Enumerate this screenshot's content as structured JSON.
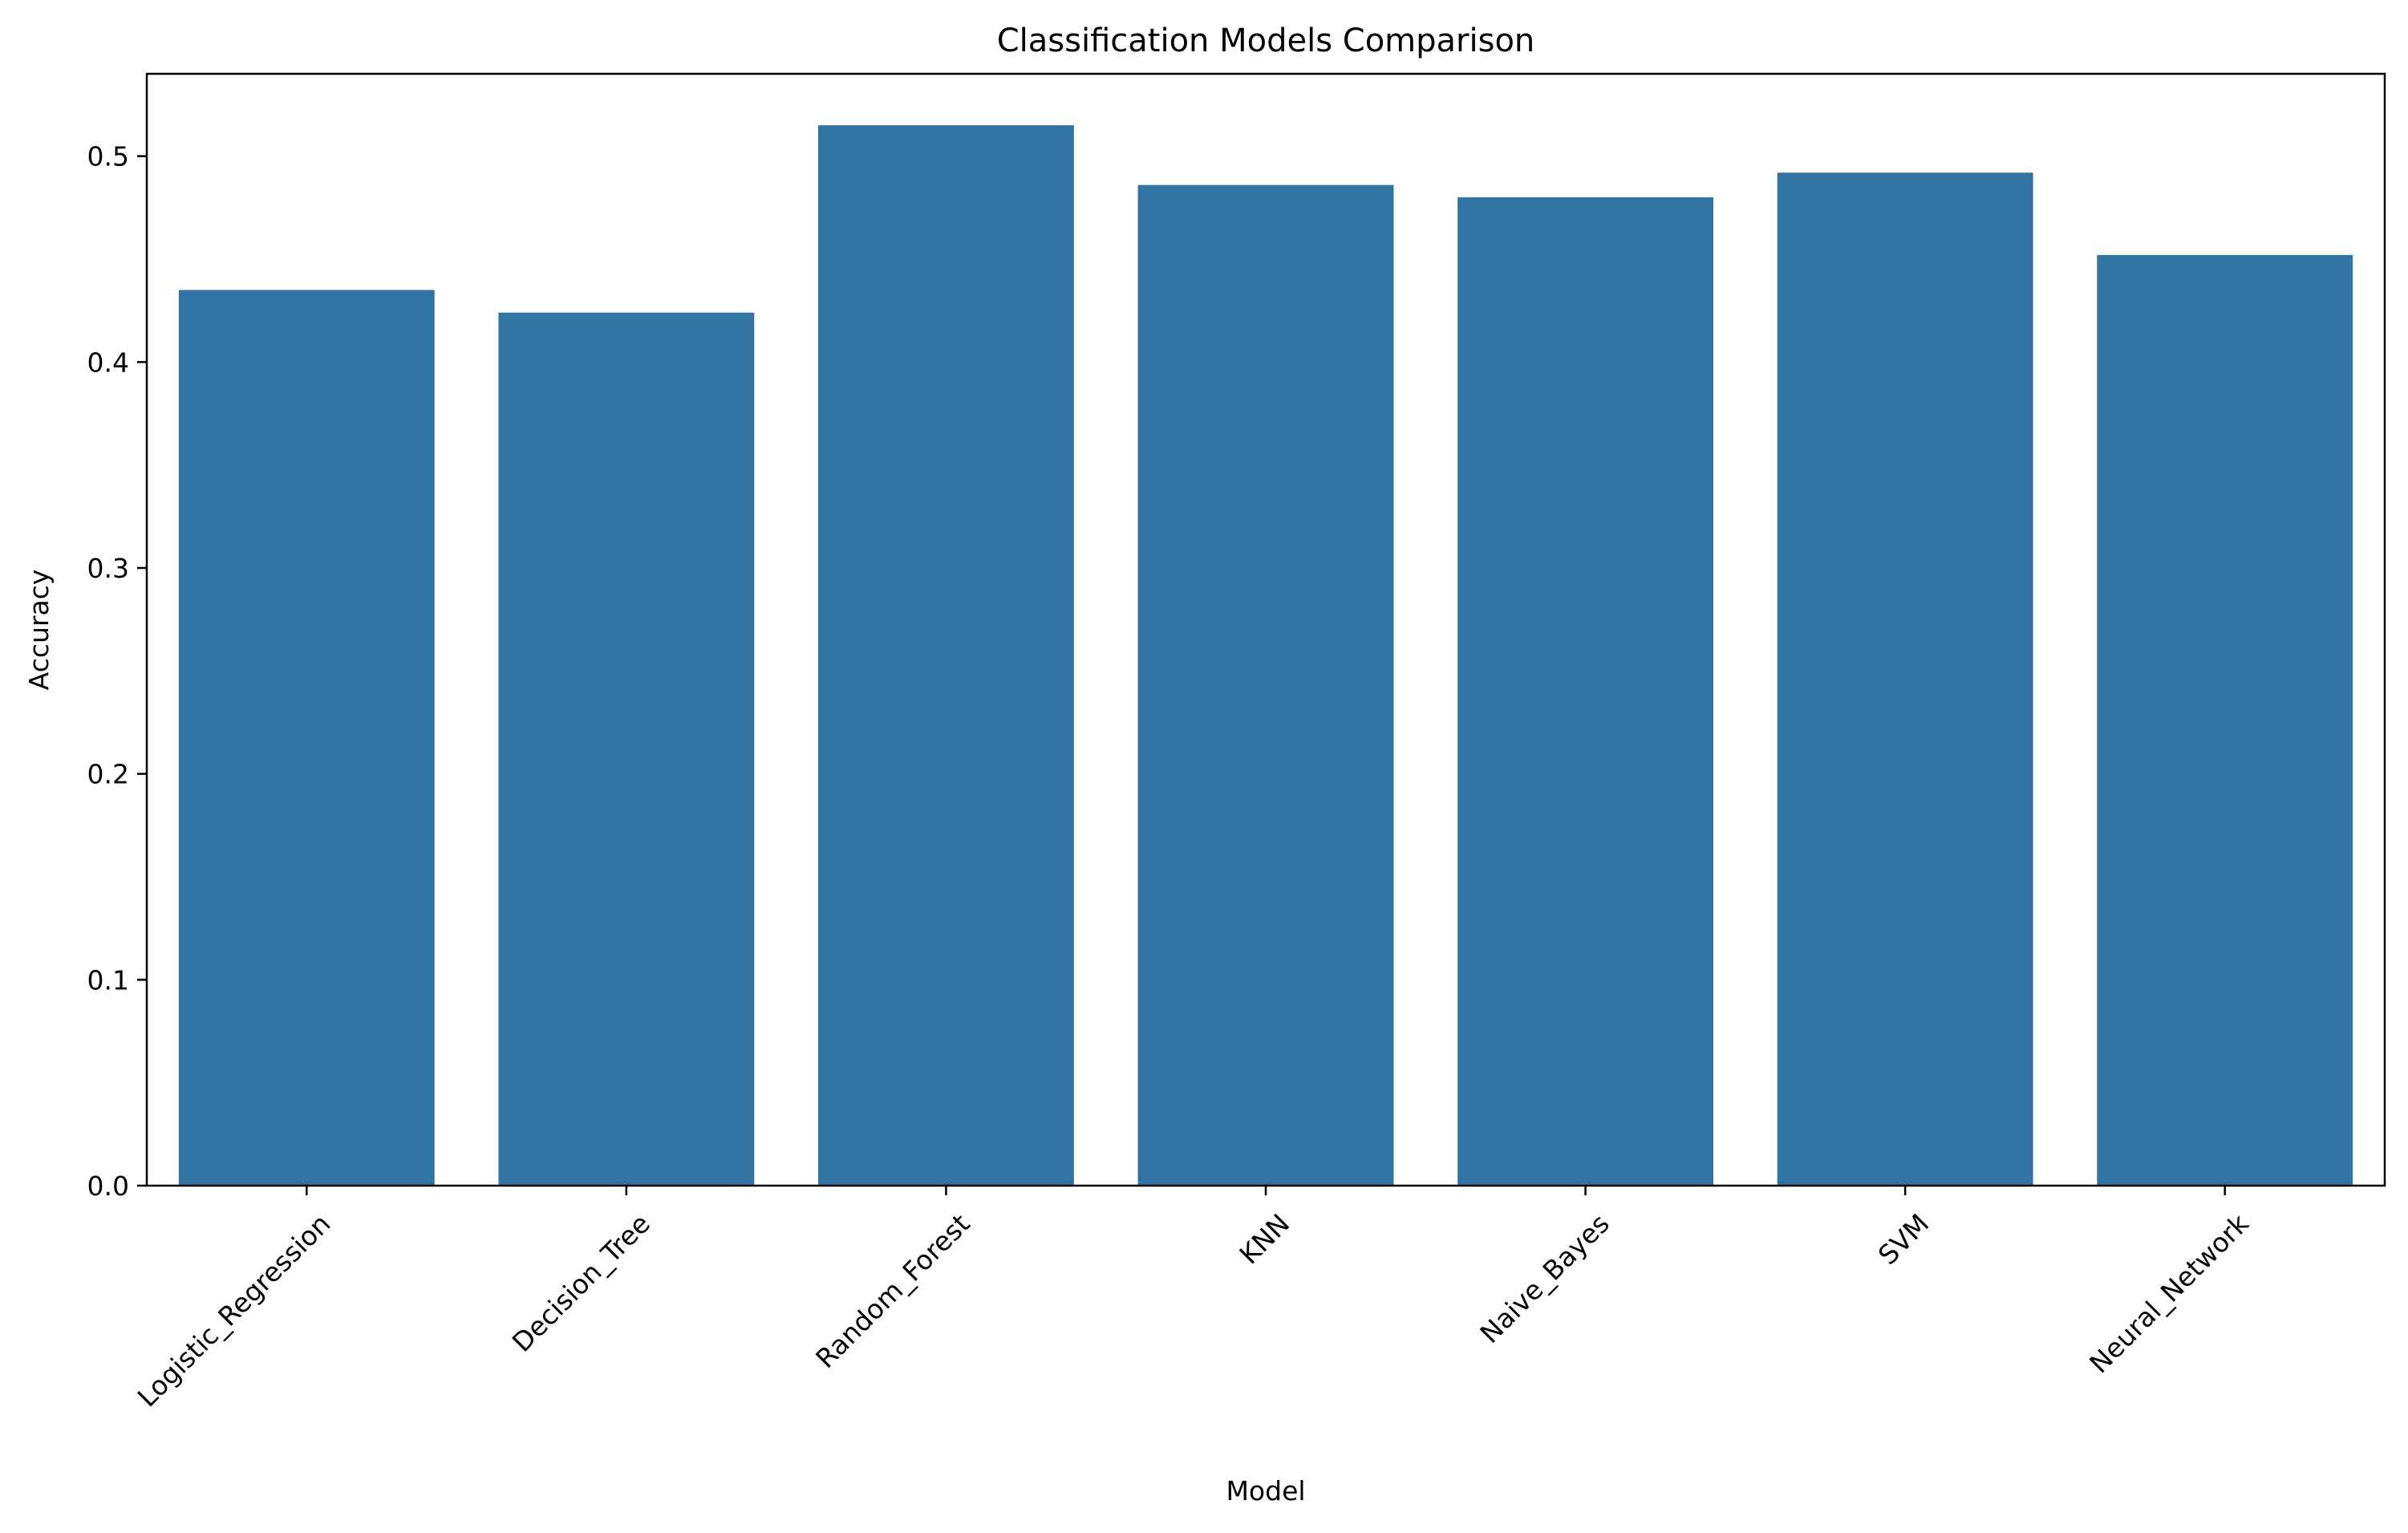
{
  "chart_data": {
    "type": "bar",
    "title": "Classification Models Comparison",
    "xlabel": "Model",
    "ylabel": "Accuracy",
    "categories": [
      "Logistic_Regression",
      "Decision_Tree",
      "Random_Forest",
      "KNN",
      "Naive_Bayes",
      "SVM",
      "Neural_Network"
    ],
    "values": [
      0.435,
      0.424,
      0.515,
      0.486,
      0.48,
      0.492,
      0.452
    ],
    "ylim": [
      0,
      0.54
    ],
    "yticks": [
      0.0,
      0.1,
      0.2,
      0.3,
      0.4,
      0.5
    ],
    "ytick_labels": [
      "0.0",
      "0.1",
      "0.2",
      "0.3",
      "0.4",
      "0.5"
    ],
    "bar_color": "#3274a1",
    "grid": false,
    "xtick_rotation_deg": 45
  }
}
